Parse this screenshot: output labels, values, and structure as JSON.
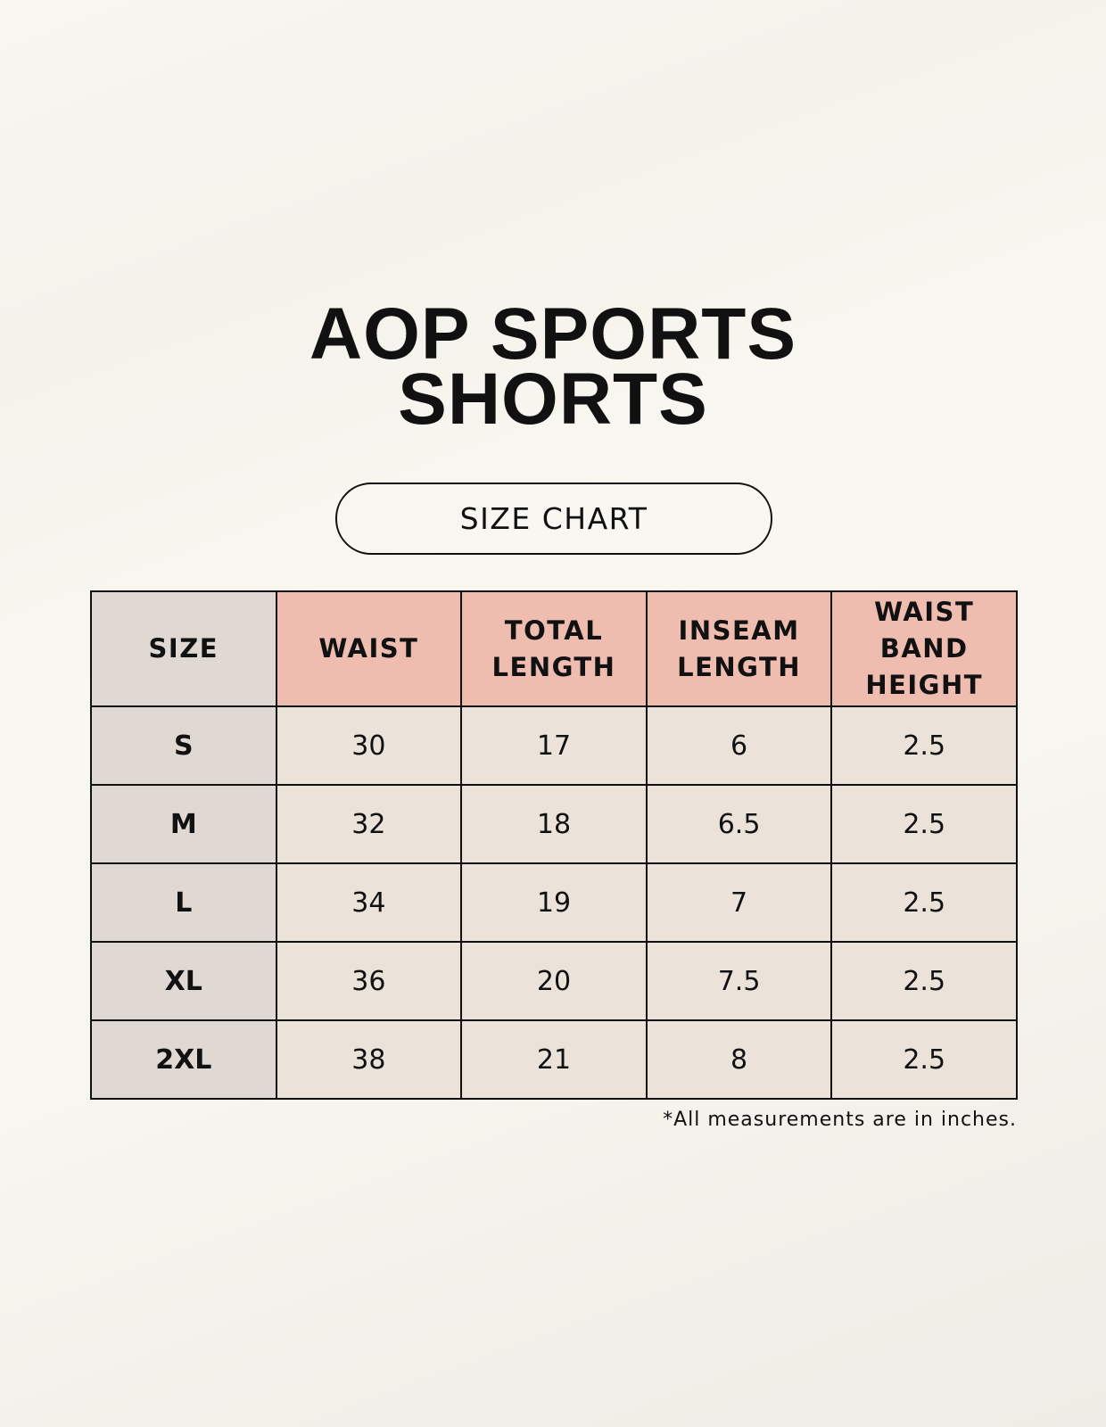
{
  "title": [
    "AOP SPORTS",
    "SHORTS"
  ],
  "badge": "SIZE CHART",
  "table": {
    "header": [
      [
        "SIZE"
      ],
      [
        "WAIST"
      ],
      [
        "TOTAL",
        "LENGTH"
      ],
      [
        "INSEAM",
        "LENGTH"
      ],
      [
        "WAIST",
        "BAND",
        "HEIGHT"
      ]
    ],
    "rows": [
      [
        "S",
        30,
        17,
        6,
        2.5
      ],
      [
        "M",
        32,
        18,
        6.5,
        2.5
      ],
      [
        "L",
        34,
        19,
        7,
        2.5
      ],
      [
        "XL",
        36,
        20,
        7.5,
        2.5
      ],
      [
        "2XL",
        38,
        21,
        8,
        2.5
      ]
    ]
  },
  "footnote": "*All measurements are in inches."
}
